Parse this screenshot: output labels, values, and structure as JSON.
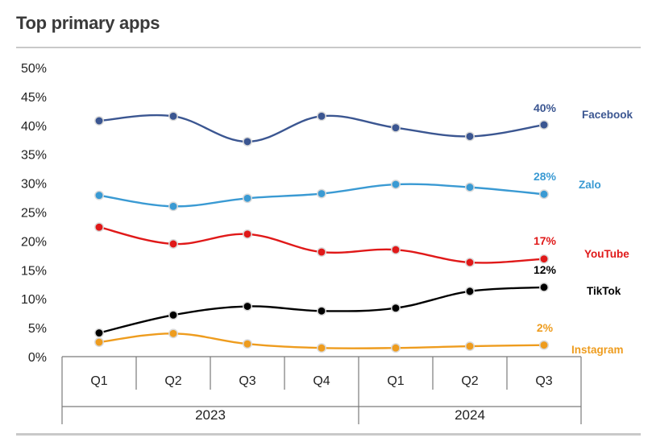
{
  "header": {
    "title": "Top primary apps"
  },
  "chart_data": {
    "type": "line",
    "title": "Top primary apps",
    "xlabel": "",
    "ylabel": "",
    "ylim": [
      0,
      50
    ],
    "yticks": [
      "0%",
      "5%",
      "10%",
      "15%",
      "20%",
      "25%",
      "30%",
      "35%",
      "40%",
      "45%",
      "50%"
    ],
    "categories": [
      "Q1",
      "Q2",
      "Q3",
      "Q4",
      "Q1",
      "Q2",
      "Q3"
    ],
    "groups": [
      {
        "label": "2023",
        "span": 4
      },
      {
        "label": "2024",
        "span": 3
      }
    ],
    "grid": false,
    "series": [
      {
        "name": "Facebook",
        "color": "#3b5691",
        "values": [
          40.8,
          41.6,
          37.2,
          41.6,
          39.6,
          38.1,
          40.1
        ],
        "end_label": "40%"
      },
      {
        "name": "Zalo",
        "color": "#3a9ad3",
        "values": [
          27.9,
          26.0,
          27.4,
          28.2,
          29.8,
          29.3,
          28.1
        ],
        "end_label": "28%"
      },
      {
        "name": "YouTube",
        "color": "#e01919",
        "values": [
          22.4,
          19.5,
          21.2,
          18.1,
          18.5,
          16.3,
          16.9
        ],
        "end_label": "17%"
      },
      {
        "name": "TikTok",
        "color": "#000000",
        "values": [
          4.1,
          7.2,
          8.7,
          7.9,
          8.4,
          11.3,
          12.0
        ],
        "end_label": "12%"
      },
      {
        "name": "Instagram",
        "color": "#ee9c1e",
        "values": [
          2.5,
          4.0,
          2.2,
          1.5,
          1.5,
          1.8,
          2.0
        ],
        "end_label": "2%"
      }
    ]
  }
}
